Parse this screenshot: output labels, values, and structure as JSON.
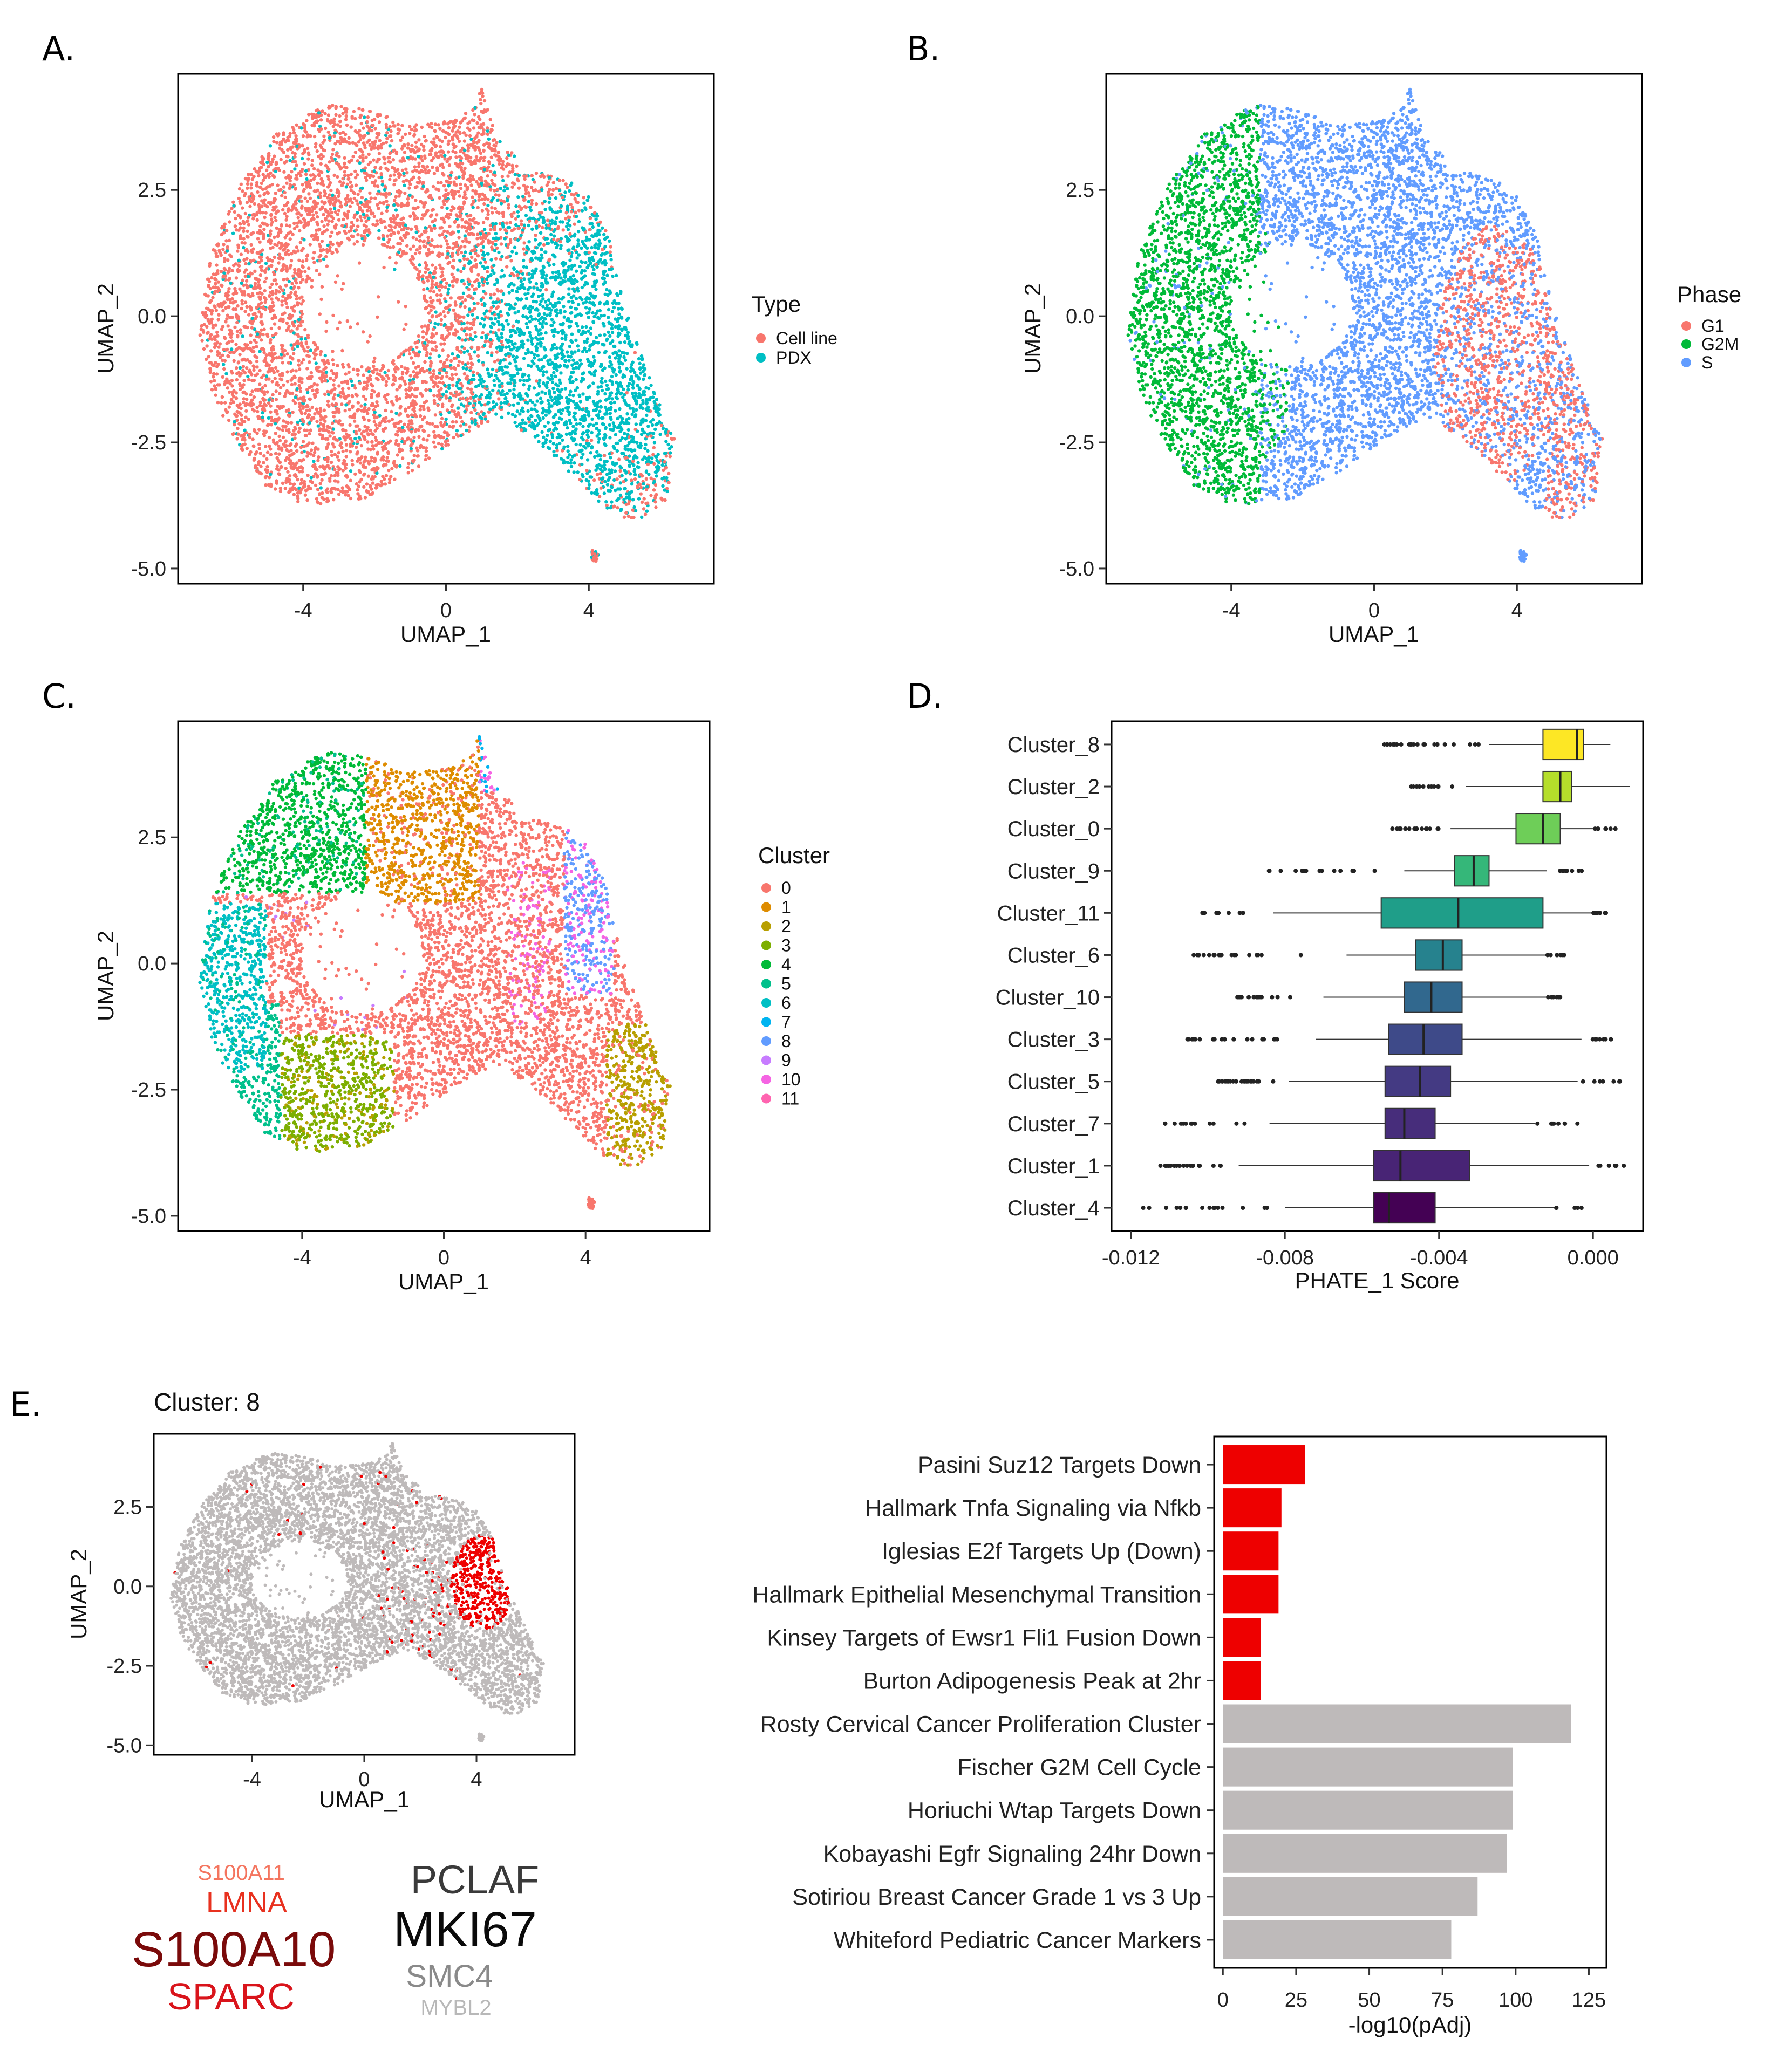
{
  "panels": {
    "a": {
      "letter": "A."
    },
    "b": {
      "letter": "B."
    },
    "c": {
      "letter": "C."
    },
    "d": {
      "letter": "D."
    },
    "e": {
      "letter": "E.",
      "subtitle": "Cluster: 8"
    }
  },
  "chart_data": [
    {
      "id": "A",
      "type": "scatter",
      "xlabel": "UMAP_1",
      "ylabel": "UMAP_2",
      "xlim": [
        -7.5,
        7.5
      ],
      "ylim": [
        -5.3,
        4.8
      ],
      "x_ticks": [
        "-4",
        "0",
        "4"
      ],
      "y_ticks": [
        "2.5",
        "0.0",
        "-2.5",
        "-5.0"
      ],
      "legend": {
        "title": "Type",
        "entries": [
          {
            "label": "Cell line",
            "color": "#F8766D"
          },
          {
            "label": "PDX",
            "color": "#00BFC4"
          }
        ]
      }
    },
    {
      "id": "B",
      "type": "scatter",
      "xlabel": "UMAP_1",
      "ylabel": "UMAP_2",
      "xlim": [
        -7.5,
        7.5
      ],
      "ylim": [
        -5.3,
        4.8
      ],
      "x_ticks": [
        "-4",
        "0",
        "4"
      ],
      "y_ticks": [
        "2.5",
        "0.0",
        "-2.5",
        "-5.0"
      ],
      "legend": {
        "title": "Phase",
        "entries": [
          {
            "label": "G1",
            "color": "#F8766D"
          },
          {
            "label": "G2M",
            "color": "#00BA38"
          },
          {
            "label": "S",
            "color": "#619CFF"
          }
        ]
      }
    },
    {
      "id": "C",
      "type": "scatter",
      "xlabel": "UMAP_1",
      "ylabel": "UMAP_2",
      "xlim": [
        -7.5,
        7.5
      ],
      "ylim": [
        -5.3,
        4.8
      ],
      "x_ticks": [
        "-4",
        "0",
        "4"
      ],
      "y_ticks": [
        "2.5",
        "0.0",
        "-2.5",
        "-5.0"
      ],
      "legend": {
        "title": "Cluster",
        "entries": [
          {
            "label": "0",
            "color": "#F8766D"
          },
          {
            "label": "1",
            "color": "#DE8C00"
          },
          {
            "label": "2",
            "color": "#B79F00"
          },
          {
            "label": "3",
            "color": "#7CAE00"
          },
          {
            "label": "4",
            "color": "#00BA38"
          },
          {
            "label": "5",
            "color": "#00C08B"
          },
          {
            "label": "6",
            "color": "#00BFC4"
          },
          {
            "label": "7",
            "color": "#00B4F0"
          },
          {
            "label": "8",
            "color": "#619CFF"
          },
          {
            "label": "9",
            "color": "#C77CFF"
          },
          {
            "label": "10",
            "color": "#F564E3"
          },
          {
            "label": "11",
            "color": "#FF64B0"
          }
        ]
      }
    },
    {
      "id": "D",
      "type": "box",
      "xlabel": "PHATE_1 Score",
      "xlim": [
        -0.0125,
        0.0013
      ],
      "x_ticks": [
        {
          "value": -0.012,
          "label": "-0.012"
        },
        {
          "value": -0.008,
          "label": "-0.008"
        },
        {
          "value": -0.004,
          "label": "-0.004"
        },
        {
          "value": 0.0,
          "label": "0.000"
        }
      ],
      "series": [
        {
          "name": "Cluster_8",
          "q1": -0.0013,
          "median": -0.00042,
          "q3": -0.00025,
          "wmin": -0.0027,
          "wmax": 0.00045,
          "color": "#FDE725"
        },
        {
          "name": "Cluster_2",
          "q1": -0.0013,
          "median": -0.00085,
          "q3": -0.00055,
          "wmin": -0.0033,
          "wmax": 0.00095,
          "color": "#B5DE2B"
        },
        {
          "name": "Cluster_0",
          "q1": -0.002,
          "median": -0.0013,
          "q3": -0.00085,
          "wmin": -0.0037,
          "wmax": 0.0,
          "color": "#6ECE58"
        },
        {
          "name": "Cluster_9",
          "q1": -0.0036,
          "median": -0.0031,
          "q3": -0.0027,
          "wmin": -0.0049,
          "wmax": -0.0012,
          "color": "#35B779"
        },
        {
          "name": "Cluster_11",
          "q1": -0.0055,
          "median": -0.0035,
          "q3": -0.0013,
          "wmin": -0.0083,
          "wmax": 0.0,
          "color": "#1F9E89"
        },
        {
          "name": "Cluster_6",
          "q1": -0.0046,
          "median": -0.0039,
          "q3": -0.0034,
          "wmin": -0.0064,
          "wmax": -0.0012,
          "color": "#26828E"
        },
        {
          "name": "Cluster_10",
          "q1": -0.0049,
          "median": -0.0042,
          "q3": -0.0034,
          "wmin": -0.007,
          "wmax": -0.0012,
          "color": "#31688E"
        },
        {
          "name": "Cluster_3",
          "q1": -0.0053,
          "median": -0.0044,
          "q3": -0.0034,
          "wmin": -0.0072,
          "wmax": -0.0003,
          "color": "#3E4A89"
        },
        {
          "name": "Cluster_5",
          "q1": -0.0054,
          "median": -0.0045,
          "q3": -0.0037,
          "wmin": -0.0079,
          "wmax": -0.0004,
          "color": "#443A83"
        },
        {
          "name": "Cluster_7",
          "q1": -0.0054,
          "median": -0.0049,
          "q3": -0.0041,
          "wmin": -0.0084,
          "wmax": -0.0015,
          "color": "#472D7B"
        },
        {
          "name": "Cluster_1",
          "q1": -0.0057,
          "median": -0.005,
          "q3": -0.0032,
          "wmin": -0.0092,
          "wmax": -0.0001,
          "color": "#482475"
        },
        {
          "name": "Cluster_4",
          "q1": -0.0057,
          "median": -0.0053,
          "q3": -0.0041,
          "wmin": -0.008,
          "wmax": -0.001,
          "color": "#440154"
        }
      ]
    },
    {
      "id": "E-umap",
      "type": "scatter",
      "title": "Cluster: 8",
      "xlabel": "UMAP_1",
      "ylabel": "UMAP_2",
      "xlim": [
        -7.5,
        7.5
      ],
      "ylim": [
        -5.3,
        4.8
      ],
      "x_ticks": [
        "-4",
        "0",
        "4"
      ],
      "y_ticks": [
        "2.5",
        "0.0",
        "-2.5",
        "-5.0"
      ],
      "colors": {
        "background": "#BEBABA",
        "highlight": "#EE0000"
      }
    },
    {
      "id": "E-bars",
      "type": "bar",
      "orientation": "horizontal",
      "xlabel": "-log10(pAdj)",
      "xlim": [
        -3,
        131
      ],
      "x_ticks": [
        "0",
        "25",
        "50",
        "75",
        "100",
        "125"
      ],
      "categories": [
        "Pasini Suz12 Targets Down",
        "Hallmark Tnfa Signaling via Nfkb",
        "Iglesias E2f Targets Up (Down)",
        "Hallmark Epithelial Mesenchymal Transition",
        "Kinsey Targets of Ewsr1 Fli1 Fusion Down",
        "Burton Adipogenesis Peak at 2hr",
        "Rosty Cervical Cancer Proliferation Cluster",
        "Fischer G2M Cell Cycle",
        "Horiuchi Wtap Targets Down",
        "Kobayashi Egfr Signaling 24hr Down",
        "Sotiriou Breast Cancer Grade 1 vs 3 Up",
        "Whiteford Pediatric Cancer Markers"
      ],
      "values": [
        28,
        20,
        19,
        19,
        13,
        13,
        119,
        99,
        99,
        97,
        87,
        78
      ],
      "colors": [
        "#EE0000",
        "#EE0000",
        "#EE0000",
        "#EE0000",
        "#EE0000",
        "#EE0000",
        "#BEBABA",
        "#BEBABA",
        "#BEBABA",
        "#BEBABA",
        "#BEBABA",
        "#BEBABA"
      ]
    }
  ],
  "word_cloud": {
    "up": [
      {
        "word": "S100A11",
        "color": "#F4755F"
      },
      {
        "word": "LMNA",
        "color": "#E8311F"
      },
      {
        "word": "S100A10",
        "color": "#7A0A0A"
      },
      {
        "word": "SPARC",
        "color": "#D9141B"
      }
    ],
    "down": [
      {
        "word": "PCLAF",
        "color": "#3A3A3A"
      },
      {
        "word": "MKI67",
        "color": "#0A0A0A"
      },
      {
        "word": "SMC4",
        "color": "#8A8A8A"
      },
      {
        "word": "MYBL2",
        "color": "#B8B8B8"
      }
    ]
  }
}
